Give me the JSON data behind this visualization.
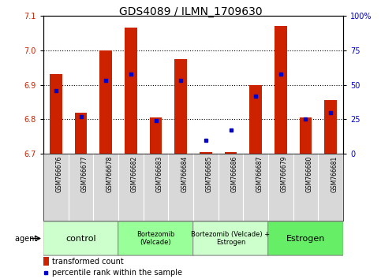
{
  "title": "GDS4089 / ILMN_1709630",
  "samples": [
    "GSM766676",
    "GSM766677",
    "GSM766678",
    "GSM766682",
    "GSM766683",
    "GSM766684",
    "GSM766685",
    "GSM766686",
    "GSM766687",
    "GSM766679",
    "GSM766680",
    "GSM766681"
  ],
  "transformed_counts": [
    6.93,
    6.82,
    7.0,
    7.065,
    6.805,
    6.975,
    6.705,
    6.705,
    6.9,
    7.07,
    6.805,
    6.855
  ],
  "percentile_ranks": [
    46,
    27,
    53,
    58,
    24,
    53,
    10,
    17,
    42,
    58,
    25,
    30
  ],
  "ylim_left": [
    6.7,
    7.1
  ],
  "ylim_right": [
    0,
    100
  ],
  "yticks_left": [
    6.7,
    6.8,
    6.9,
    7.0,
    7.1
  ],
  "yticks_right": [
    0,
    25,
    50,
    75,
    100
  ],
  "groups": [
    {
      "label": "control",
      "start": 0,
      "end": 3,
      "color": "#ccffcc"
    },
    {
      "label": "Bortezomib\n(Velcade)",
      "start": 3,
      "end": 6,
      "color": "#99ff99"
    },
    {
      "label": "Bortezomib (Velcade) +\nEstrogen",
      "start": 6,
      "end": 9,
      "color": "#ccffcc"
    },
    {
      "label": "Estrogen",
      "start": 9,
      "end": 12,
      "color": "#66ee66"
    }
  ],
  "bar_color": "#cc2200",
  "dot_color": "#0000cc",
  "bar_width": 0.5,
  "bar_bottom": 6.7,
  "legend_items": [
    {
      "label": "transformed count",
      "color": "#cc2200"
    },
    {
      "label": "percentile rank within the sample",
      "color": "#0000cc"
    }
  ],
  "agent_label": "agent",
  "title_fontsize": 10,
  "tick_fontsize": 7,
  "sample_fontsize": 5.5,
  "group_fontsize_large": 8,
  "group_fontsize_small": 6,
  "legend_fontsize": 7,
  "bg_color": "#d8d8d8"
}
